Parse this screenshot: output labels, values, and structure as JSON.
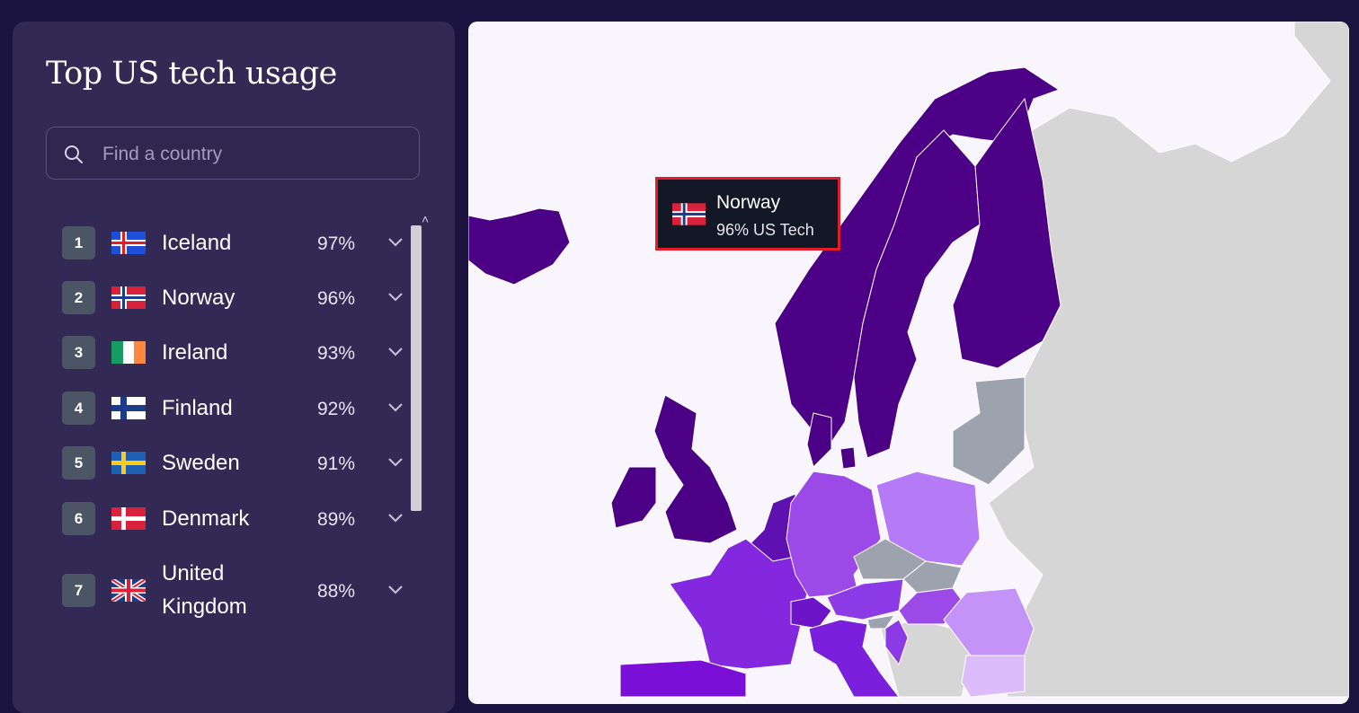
{
  "sidebar": {
    "title": "Top US tech usage",
    "search": {
      "placeholder": "Find a country",
      "value": ""
    },
    "countries": [
      {
        "rank": "1",
        "name": "Iceland",
        "percent": "97%",
        "flag": "iceland-flag"
      },
      {
        "rank": "2",
        "name": "Norway",
        "percent": "96%",
        "flag": "norway-flag"
      },
      {
        "rank": "3",
        "name": "Ireland",
        "percent": "93%",
        "flag": "ireland-flag"
      },
      {
        "rank": "4",
        "name": "Finland",
        "percent": "92%",
        "flag": "finland-flag"
      },
      {
        "rank": "5",
        "name": "Sweden",
        "percent": "91%",
        "flag": "sweden-flag"
      },
      {
        "rank": "6",
        "name": "Denmark",
        "percent": "89%",
        "flag": "denmark-flag"
      },
      {
        "rank": "7",
        "name": "United Kingdom",
        "percent": "88%",
        "flag": "uk-flag"
      }
    ]
  },
  "tooltip": {
    "country": "Norway",
    "value": "96% US Tech",
    "flag": "norway-flag"
  },
  "colors": {
    "background": "#1b1440",
    "panel": "#322a54",
    "map_background": "#f8f5fd",
    "highest": "#4b0086",
    "high": "#7a1fdc",
    "medium": "#a35af0",
    "low": "#d6b4fb",
    "no_data": "#d5d5d5",
    "highlight_border": "#e11d2a"
  }
}
